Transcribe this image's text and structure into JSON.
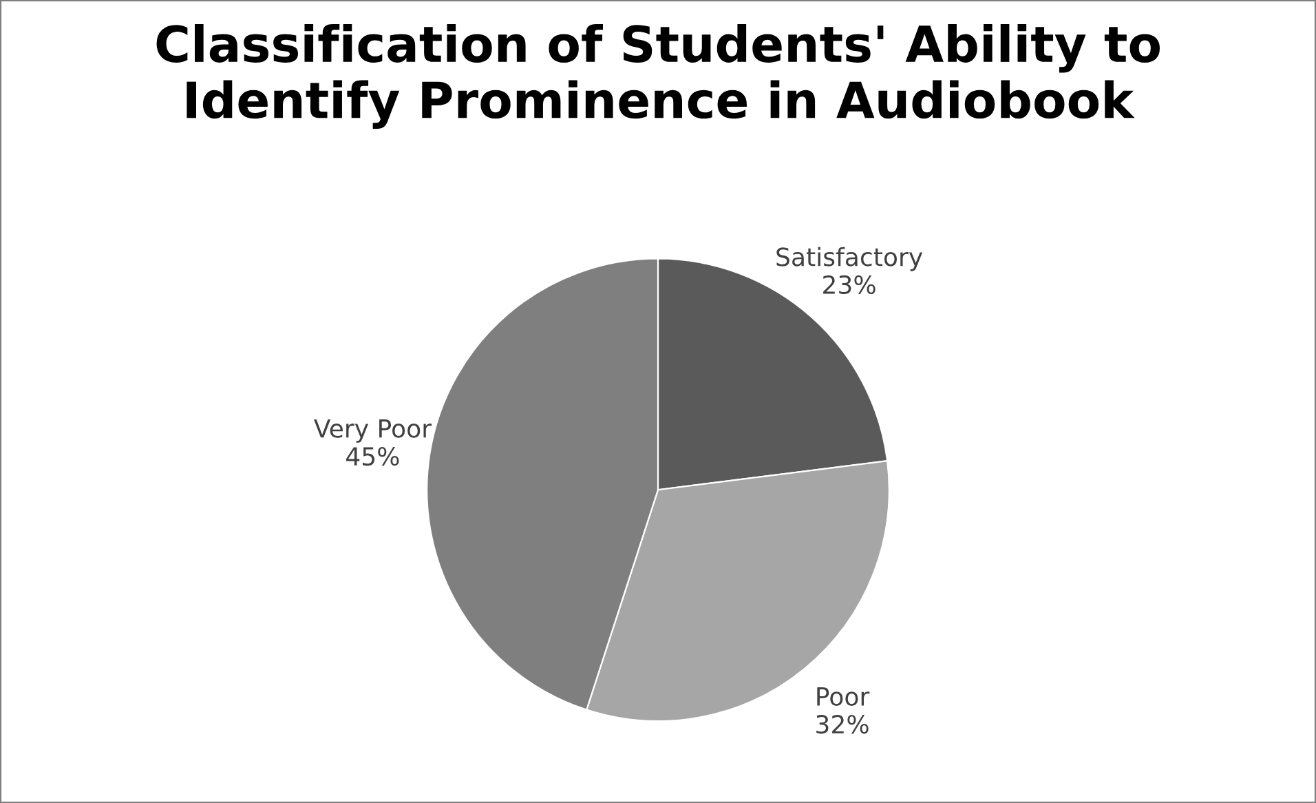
{
  "chart_data": {
    "type": "pie",
    "title": "Classification of Students' Ability to\nIdentify Prominence in Audiobook",
    "categories": [
      "Satisfactory",
      "Poor",
      "Very Poor"
    ],
    "values": [
      23,
      32,
      45
    ],
    "value_labels": [
      "23%",
      "32%",
      "45%"
    ],
    "colors": [
      "#5a5a5a",
      "#a6a6a6",
      "#7f7f7f"
    ]
  }
}
